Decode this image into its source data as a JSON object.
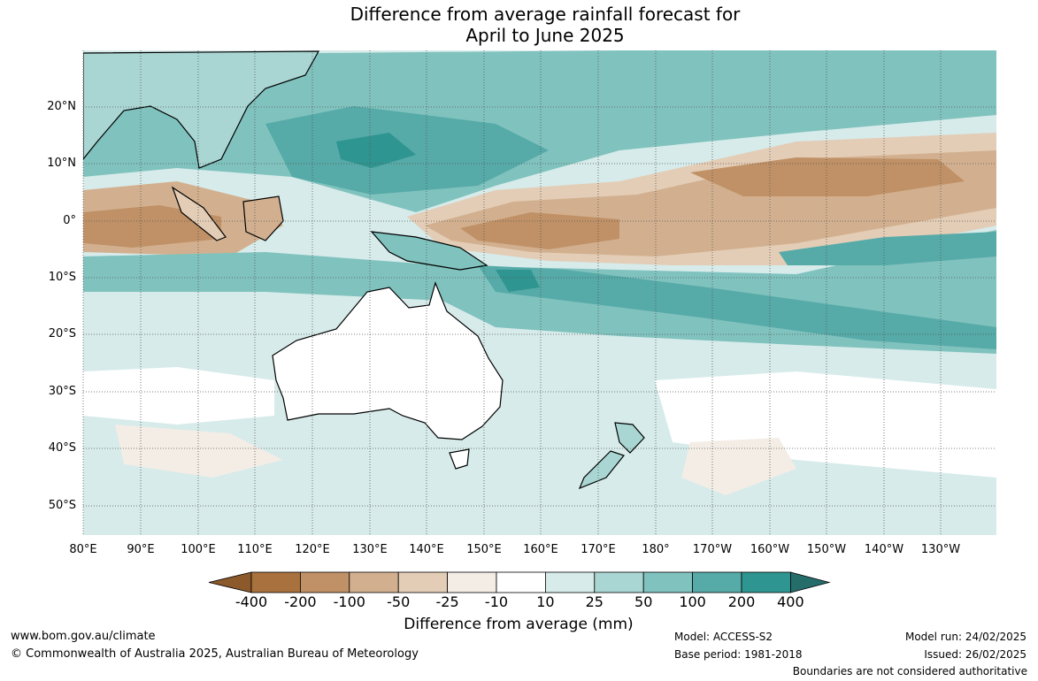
{
  "title": {
    "line1": "Difference from average rainfall forecast for",
    "line2": "April to June 2025"
  },
  "map": {
    "lat_ticks": [
      "20°N",
      "10°N",
      "0°",
      "10°S",
      "20°S",
      "30°S",
      "40°S",
      "50°S"
    ],
    "lon_ticks": [
      "80°E",
      "90°E",
      "100°E",
      "110°E",
      "120°E",
      "130°E",
      "140°E",
      "150°E",
      "160°E",
      "170°E",
      "180°",
      "170°W",
      "160°W",
      "150°W",
      "140°W",
      "130°W"
    ],
    "colors": {
      "dry_extreme": "#8c5a2a",
      "dry_400": "#a8713d",
      "dry_200": "#c09166",
      "dry_100": "#d2b08f",
      "dry_50": "#e3cdb6",
      "dry_25": "#f3ede6",
      "neutral": "#ffffff",
      "wet_10": "#d6ebea",
      "wet_25": "#a9d6d3",
      "wet_50": "#80c2be",
      "wet_100": "#56aaa8",
      "wet_200": "#2f9590",
      "wet_extreme": "#256d6b",
      "coast": "#000000",
      "grid": "#555555"
    }
  },
  "colorbar": {
    "labels": [
      "-400",
      "-200",
      "-100",
      "-50",
      "-25",
      "-10",
      "10",
      "25",
      "50",
      "100",
      "200",
      "400"
    ],
    "title": "Difference from average (mm)"
  },
  "footer": {
    "website": "www.bom.gov.au/climate",
    "copyright": "© Commonwealth of Australia 2025, Australian Bureau of Meteorology",
    "model": "Model: ACCESS-S2",
    "base_period": "Base period: 1981-2018",
    "model_run": "Model run: 24/02/2025",
    "issued": "Issued: 26/02/2025",
    "disclaimer": "Boundaries are not considered authoritative"
  }
}
